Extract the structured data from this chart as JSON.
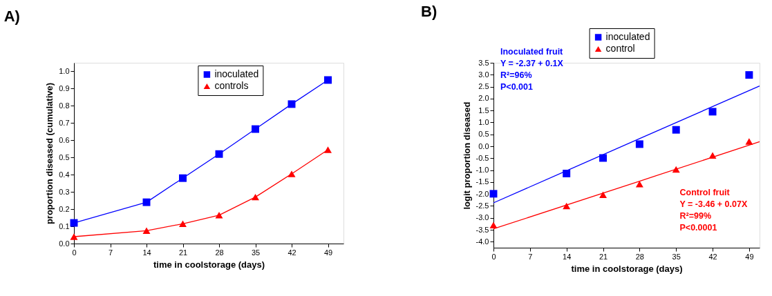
{
  "chart_data": [
    {
      "type": "line",
      "title": "A)",
      "xlabel": "time in coolstorage (days)",
      "ylabel": "proportion diseased (cumulative)",
      "x": [
        0,
        14,
        21,
        28,
        35,
        42,
        49
      ],
      "series": [
        {
          "name": "inoculated",
          "color": "#0000ff",
          "marker": "square",
          "values": [
            0.12,
            0.24,
            0.38,
            0.52,
            0.665,
            0.81,
            0.95
          ]
        },
        {
          "name": "controls",
          "color": "#ff0000",
          "marker": "triangle",
          "values": [
            0.04,
            0.075,
            0.115,
            0.165,
            0.27,
            0.405,
            0.545
          ]
        }
      ],
      "xlim": [
        0,
        52
      ],
      "xticks": [
        0,
        7,
        14,
        21,
        28,
        35,
        42,
        49
      ],
      "ylim": [
        0,
        1.05
      ],
      "yticks": [
        {
          "value": 0.0,
          "label": "0.0"
        },
        {
          "value": 0.1,
          "label": "0.1"
        },
        {
          "value": 0.2,
          "label": "0.2"
        },
        {
          "value": 0.3,
          "label": "0.3"
        },
        {
          "value": 0.4,
          "label": "0.4"
        },
        {
          "value": 0.5,
          "label": "0.5"
        },
        {
          "value": 0.6,
          "label": "0.6"
        },
        {
          "value": 0.7,
          "label": "0.7"
        },
        {
          "value": 0.8,
          "label": "0.8"
        },
        {
          "value": 0.9,
          "label": "0.9"
        },
        {
          "value": 1.0,
          "label": "1.0"
        }
      ],
      "grid": false,
      "legend": "top right",
      "line_style": "solid"
    },
    {
      "type": "scatter",
      "title": "B)",
      "xlabel": "time in coolstorage (days)",
      "ylabel": "logit proportion diseased",
      "x": [
        0,
        14,
        21,
        28,
        35,
        42,
        49
      ],
      "series": [
        {
          "name": "inoculated",
          "color": "#0000ff",
          "marker": "square",
          "values": [
            -1.99,
            -1.14,
            -0.49,
            0.09,
            0.69,
            1.45,
            2.99
          ]
        },
        {
          "name": "control",
          "color": "#ff0000",
          "marker": "triangle",
          "values": [
            -3.3,
            -2.5,
            -2.03,
            -1.58,
            -0.97,
            -0.38,
            0.2
          ]
        },
        {
          "type": "line",
          "color": "#0000ff",
          "x": [
            0,
            28,
            51
          ],
          "values": [
            -2.37,
            0.32,
            2.53
          ]
        },
        {
          "type": "line",
          "color": "#ff0000",
          "x": [
            0,
            28,
            51
          ],
          "values": [
            -3.46,
            -1.46,
            0.19
          ]
        }
      ],
      "annotations": [
        "Inoculated fruit\nY = -2.37 + 0.1X\nR²=96%\nP<0.001",
        "Control fruit\nY = -3.46 + 0.07X\nR²=99%\nP<0.0001"
      ],
      "xlim": [
        0,
        51
      ],
      "xticks": [
        0,
        7,
        14,
        21,
        28,
        35,
        42,
        49
      ],
      "ylim": [
        -4.25,
        3.5
      ],
      "yticks": [
        {
          "value": -4.0,
          "label": "-4.0"
        },
        {
          "value": -3.5,
          "label": "-3.5"
        },
        {
          "value": -3.0,
          "label": "-3.0"
        },
        {
          "value": -2.5,
          "label": "-2.5"
        },
        {
          "value": -2.0,
          "label": "-2.0"
        },
        {
          "value": -1.5,
          "label": "-1.5"
        },
        {
          "value": -1.0,
          "label": "-1.0"
        },
        {
          "value": -0.5,
          "label": "-0.5"
        },
        {
          "value": 0.0,
          "label": "0.0"
        },
        {
          "value": 0.5,
          "label": "0.5"
        },
        {
          "value": 1.0,
          "label": "1.0"
        },
        {
          "value": 1.5,
          "label": "1.5"
        },
        {
          "value": 2.0,
          "label": "2.0"
        },
        {
          "value": 2.5,
          "label": "2.5"
        },
        {
          "value": 3.0,
          "label": "3.0"
        },
        {
          "value": 3.5,
          "label": "3.5"
        }
      ],
      "grid": false,
      "legend": "top"
    }
  ]
}
